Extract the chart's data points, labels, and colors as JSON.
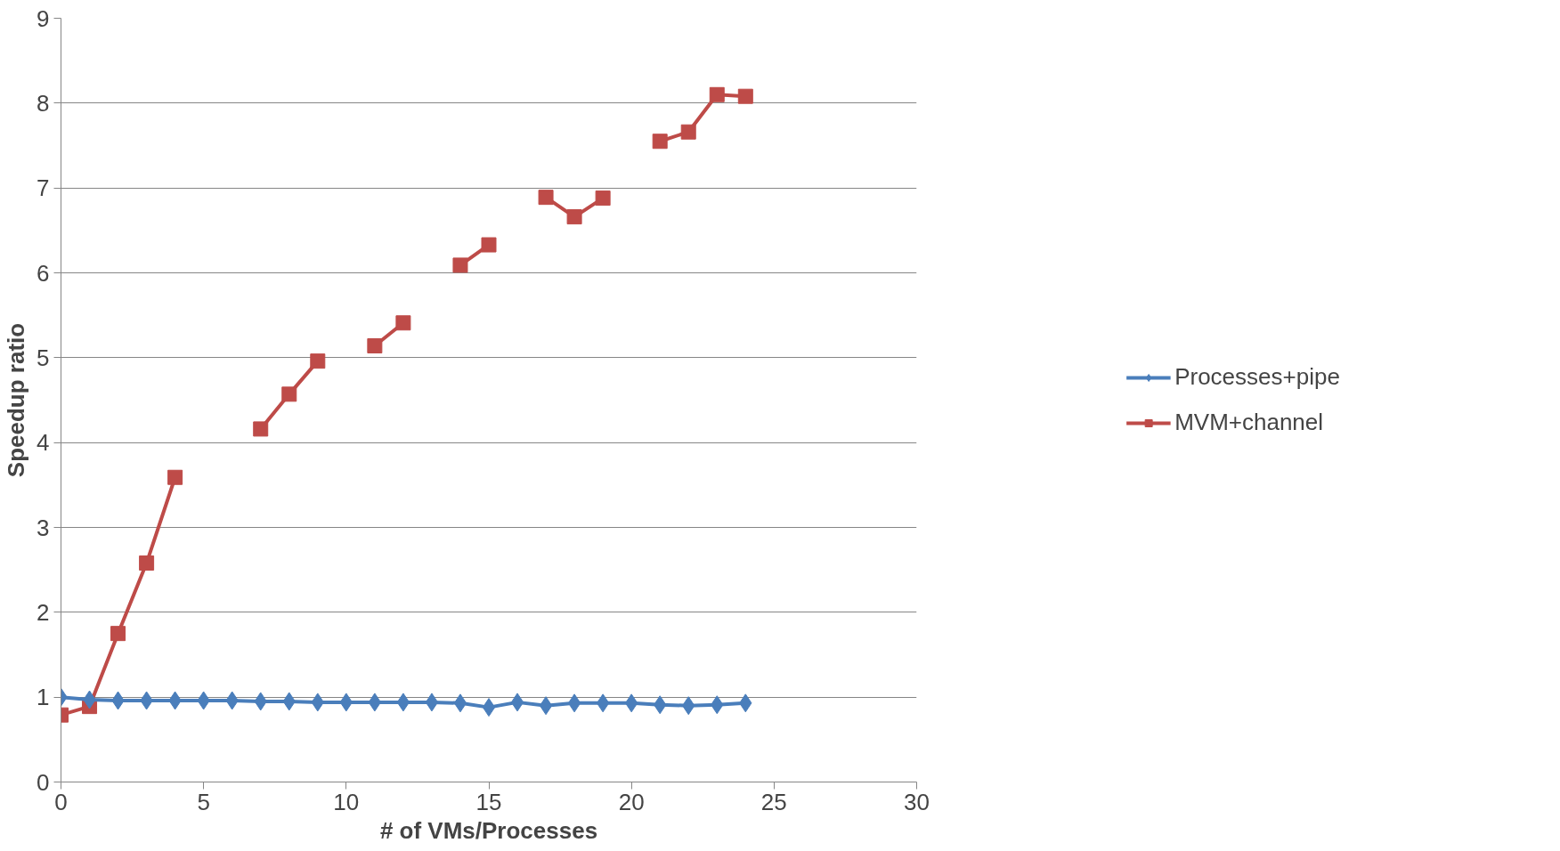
{
  "chart_data": {
    "type": "line",
    "xlabel": "# of VMs/Processes",
    "ylabel": "Speedup ratio",
    "x": [
      0,
      1,
      2,
      3,
      4,
      5,
      6,
      7,
      8,
      9,
      10,
      11,
      12,
      13,
      14,
      15,
      16,
      17,
      18,
      19,
      20,
      21,
      22,
      23,
      24
    ],
    "series": [
      {
        "name": "Processes+pipe",
        "color": "#4a7ebb",
        "marker": "diamond",
        "values": [
          1.0,
          0.97,
          0.96,
          0.96,
          0.96,
          0.96,
          0.96,
          0.95,
          0.95,
          0.94,
          0.94,
          0.94,
          0.94,
          0.94,
          0.93,
          0.88,
          0.94,
          0.9,
          0.93,
          0.93,
          0.93,
          0.91,
          0.9,
          0.91,
          0.93
        ]
      },
      {
        "name": "MVM+channel",
        "color": "#be4b48",
        "marker": "square",
        "values": [
          0.79,
          0.89,
          1.75,
          2.58,
          3.59,
          null,
          null,
          4.16,
          4.57,
          4.96,
          null,
          5.14,
          5.41,
          null,
          6.09,
          6.33,
          null,
          6.89,
          6.66,
          6.88,
          null,
          7.55,
          7.66,
          8.1,
          8.08
        ]
      }
    ],
    "xlim": [
      0,
      30
    ],
    "xticks": [
      0,
      5,
      10,
      15,
      20,
      25,
      30
    ],
    "ylim": [
      0,
      9
    ],
    "yticks": [
      0,
      1,
      2,
      3,
      4,
      5,
      6,
      7,
      8,
      9
    ],
    "grid": "y",
    "legend": "right",
    "line_style": "solid"
  }
}
